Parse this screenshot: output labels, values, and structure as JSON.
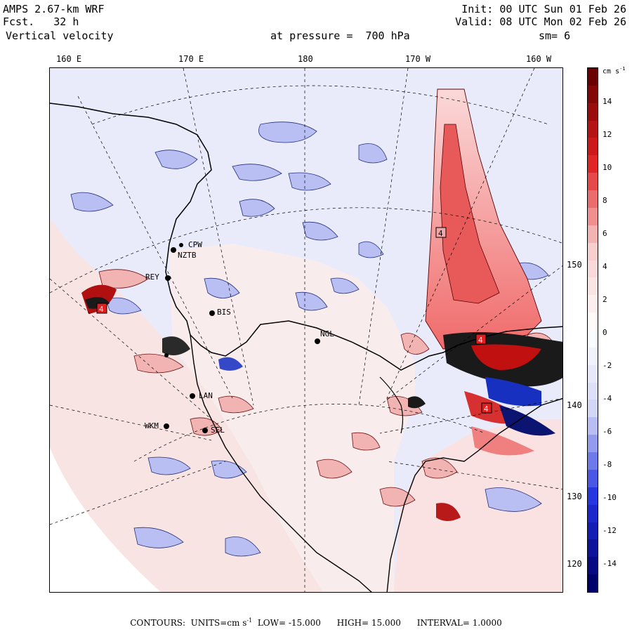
{
  "header": {
    "model": "AMPS 2.67-km WRF",
    "fcst_label": "Fcst.",
    "fcst_value": "32 h",
    "field": "Vertical velocity",
    "init": "Init: 00 UTC Sun 01 Feb 26",
    "valid": "Valid: 08 UTC Mon 02 Feb 26",
    "pressure_label": "at pressure =",
    "pressure_value": "700 hPa",
    "smoothing": "sm= 6"
  },
  "longitude_labels_top": [
    "160 E",
    "170 E",
    "180",
    "170 W",
    "160 W"
  ],
  "latitude_labels_right": [
    "150 W",
    "140 W",
    "130 W",
    "120 W"
  ],
  "stations": [
    "CPW",
    "NZTB",
    "REY",
    "BIS",
    "LAN",
    "SEL",
    "WKM",
    "NGL"
  ],
  "max_markers": [
    "4",
    "4",
    "4",
    "4"
  ],
  "colorbar": {
    "units": "cm s",
    "units_exp": "-1",
    "labels": [
      "14",
      "12",
      "10",
      "8",
      "6",
      "4",
      "2",
      "0",
      "-2",
      "-4",
      "-6",
      "-8",
      "-10",
      "-12",
      "-14"
    ],
    "colors": {
      "strong_up": "#6b0000",
      "up": "#e02020",
      "weak_up": "#f7caca",
      "zero": "#ffffff",
      "weak_down": "#d0d4f6",
      "down": "#2030e0",
      "strong_down": "#00006b"
    }
  },
  "footer": {
    "contours": "CONTOURS:",
    "units_label": "UNITS=cm s",
    "units_exp": "-1",
    "low": "LOW= -15.000",
    "high": "HIGH= 15.000",
    "interval": "INTERVAL= 1.0000"
  }
}
